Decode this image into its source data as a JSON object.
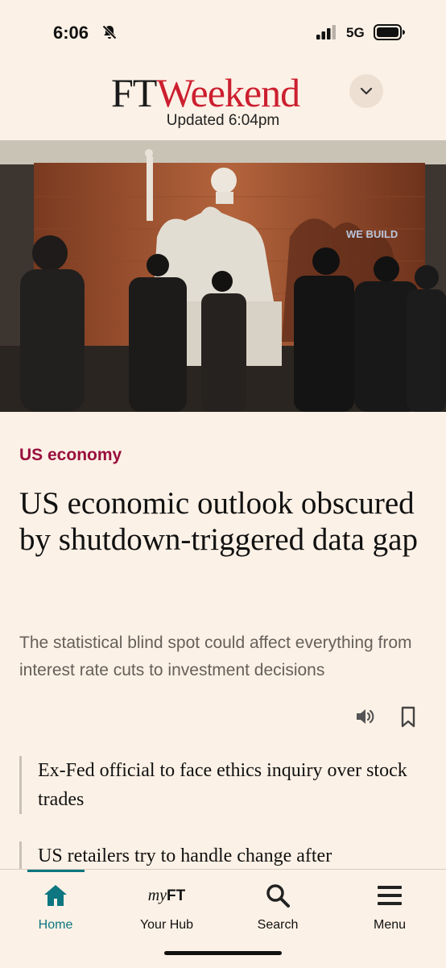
{
  "status_bar": {
    "time": "6:06",
    "network": "5G"
  },
  "masthead": {
    "logo_ft": "FT",
    "logo_weekend": "Weekend",
    "updated": "Updated 6:04pm"
  },
  "hero": {
    "overlay_text": "WE BUILD"
  },
  "article": {
    "section": "US economy",
    "headline": "US economic outlook obscured by shutdown-triggered data gap",
    "standfirst": "The statistical blind spot could affect everything from interest rate cuts to investment decisions"
  },
  "related": [
    {
      "title": "Ex-Fed official to face ethics inquiry over stock trades"
    },
    {
      "title": "US retailers try to handle change after"
    }
  ],
  "tabs": [
    {
      "label": "Home",
      "icon": "home-icon",
      "active": true
    },
    {
      "label": "Your Hub",
      "icon": "myft-logo",
      "active": false
    },
    {
      "label": "Search",
      "icon": "search-icon",
      "active": false
    },
    {
      "label": "Menu",
      "icon": "menu-icon",
      "active": false
    }
  ],
  "tab_brand": {
    "my": "my",
    "ft": "FT"
  },
  "colors": {
    "background": "#fcf1e6",
    "accent": "#0d7680",
    "section_tag": "#990f3d",
    "logo_red": "#cc1f2f"
  }
}
